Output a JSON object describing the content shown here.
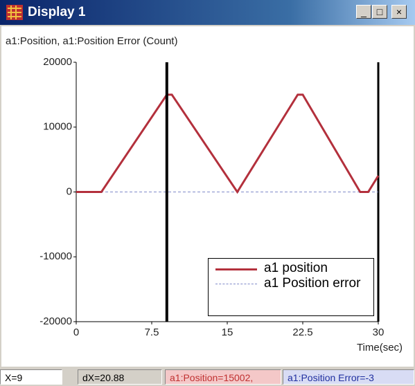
{
  "window": {
    "title": "Display 1"
  },
  "chart_data": {
    "type": "line",
    "title": "a1:Position, a1:Position Error (Count)",
    "x_label": "Time(sec)",
    "series": [
      {
        "name": "a1 position",
        "color": "#b3303c",
        "x": [
          0,
          2.5,
          9,
          9.5,
          16,
          22,
          22.5,
          28.2,
          29,
          30
        ],
        "values": [
          0,
          0,
          15000,
          15000,
          0,
          15000,
          15000,
          0,
          0,
          2500
        ]
      },
      {
        "name": "a1 Position error",
        "color": "#7f89c9",
        "dashed": true,
        "x": [
          0,
          30
        ],
        "values": [
          0,
          0
        ]
      }
    ],
    "xlim": [
      0,
      30
    ],
    "xticks": [
      0,
      7.5,
      15,
      22.5,
      30
    ],
    "ylim": [
      -20000,
      20000
    ],
    "yticks": [
      -20000,
      -10000,
      0,
      10000,
      20000
    ],
    "cursor_x": 9
  },
  "status_bar": [
    "X=9",
    "dX=20.88",
    "a1:Position=15002,",
    "a1:Position Error=-3"
  ]
}
